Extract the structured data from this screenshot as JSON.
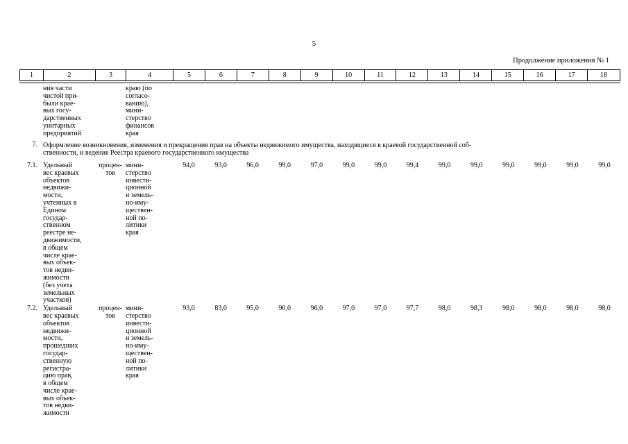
{
  "page": {
    "number": "5",
    "continuation_note": "Продолжение приложения № 1"
  },
  "table": {
    "column_numbers": [
      "1",
      "2",
      "3",
      "4",
      "5",
      "6",
      "7",
      "8",
      "9",
      "10",
      "11",
      "12",
      "13",
      "14",
      "15",
      "16",
      "17",
      "18"
    ],
    "carryover_row": {
      "name_continued": "ния части\nчистой при-\nбыли крае-\nвых госу-\nдарственных\nунитарных\nпредприятий",
      "responsible_continued": "краю (по\nсогласо-\nванию),\nмини-\nстерство\nфинансов\nкрая"
    },
    "section_row": {
      "num": "7.",
      "text": "Оформление возникновения, изменения и прекращения прав на объекты недвижимого имущества, находящиеся в краевой государственной соб-\nственности, и ведение Реестра краевого государственного имущества"
    },
    "indicator_rows": [
      {
        "num": "7.1.",
        "name": "Удельный\nвес краевых\nобъектов\nнедвижи-\nмости,\nучтенных в\nЕдином\nгосудар-\nственном\nреестре не-\nдвижимости,\nв общем\nчисле крае-\nвых объек-\nтов недви-\nжимости\n(без учета\nземельных\nучастков)",
        "unit": "процен-\nтов",
        "responsible": "мини-\nстерство\nинвести-\nционной\nи земель-\nно-иму-\nществен-\nной по-\nлитики\nкрая",
        "values": [
          "94,0",
          "93,0",
          "96,0",
          "99,0",
          "97,0",
          "99,0",
          "99,0",
          "99,4",
          "99,0",
          "99,0",
          "99,0",
          "99,0",
          "99,0",
          "99,0"
        ]
      },
      {
        "num": "7.2.",
        "name": "Удельный\nвес краевых\nобъектов\nнедвижи-\nмости,\nпрошедших\nгосудар-\nственную\nрегистра-\nцию прав,\nв общем\nчисле крае-\nвых объек-\nтов недви-\nжимости",
        "unit": "процен-\nтов",
        "responsible": "мини-\nстерство\nинвести-\nционной\nи земель-\nно-иму-\nществен-\nной по-\nлитики\nкрая",
        "values": [
          "93,0",
          "83,0",
          "95,0",
          "90,0",
          "96,0",
          "97,0",
          "97,0",
          "97,7",
          "98,0",
          "98,3",
          "98,0",
          "98,0",
          "98,0",
          "98,0"
        ]
      }
    ]
  }
}
